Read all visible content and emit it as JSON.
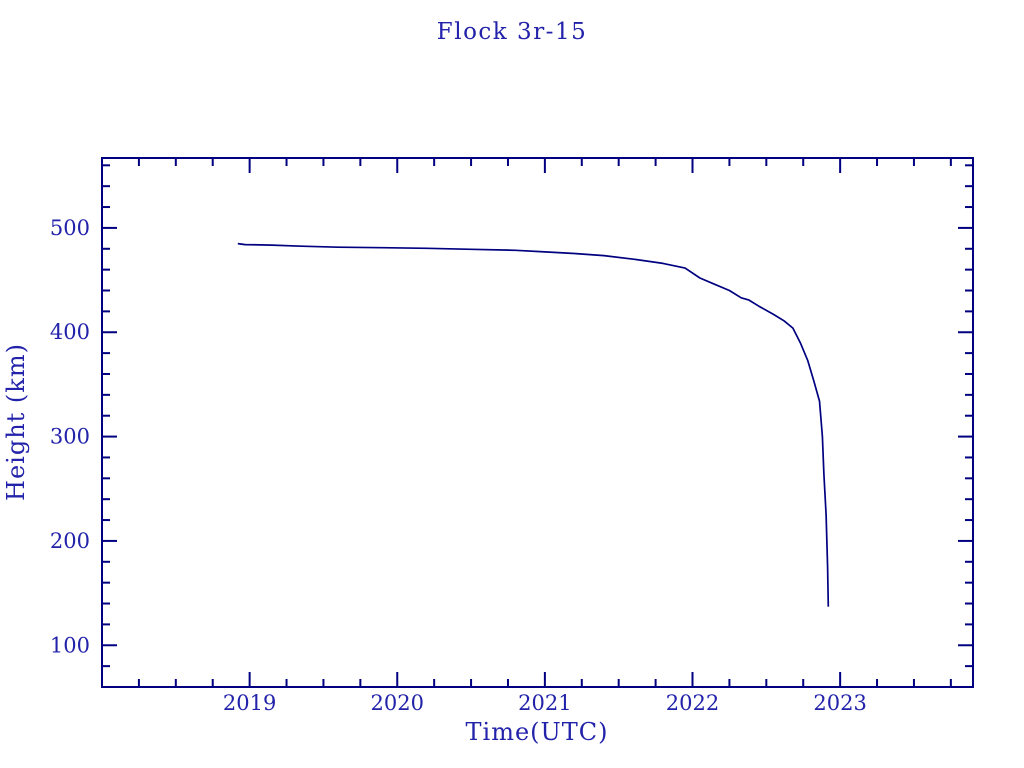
{
  "chart_data": {
    "type": "line",
    "title": "Flock 3r-15",
    "xlabel": "Time(UTC)",
    "ylabel": "Height (km)",
    "xlim": [
      2018.0,
      2023.9
    ],
    "ylim": [
      60,
      567
    ],
    "x_major_ticks": [
      2019,
      2020,
      2021,
      2022,
      2023
    ],
    "x_major_tick_labels": [
      "2019",
      "2020",
      "2021",
      "2022",
      "2023"
    ],
    "x_minor_interval": 0.25,
    "y_major_ticks": [
      100,
      200,
      300,
      400,
      500
    ],
    "y_major_tick_labels": [
      "100",
      "200",
      "300",
      "400",
      "500"
    ],
    "y_minor_interval": 20,
    "grid": false,
    "legend": "none",
    "line_color": "#000080",
    "axis_color": "#000080",
    "text_color": "#2222aa",
    "background_color": "#ffffff",
    "series": [
      {
        "name": "Flock 3r-15 orbital height",
        "points": [
          [
            2018.92,
            485.0
          ],
          [
            2018.97,
            484.0
          ],
          [
            2019.15,
            483.5
          ],
          [
            2019.35,
            482.5
          ],
          [
            2019.6,
            481.5
          ],
          [
            2019.9,
            481.0
          ],
          [
            2020.2,
            480.5
          ],
          [
            2020.5,
            479.5
          ],
          [
            2020.8,
            478.5
          ],
          [
            2021.0,
            477.0
          ],
          [
            2021.2,
            475.5
          ],
          [
            2021.4,
            473.5
          ],
          [
            2021.6,
            470.0
          ],
          [
            2021.8,
            466.0
          ],
          [
            2021.95,
            461.5
          ],
          [
            2022.05,
            452.0
          ],
          [
            2022.15,
            446.0
          ],
          [
            2022.25,
            440.0
          ],
          [
            2022.33,
            433.0
          ],
          [
            2022.38,
            431.0
          ],
          [
            2022.45,
            425.0
          ],
          [
            2022.55,
            417.0
          ],
          [
            2022.62,
            411.0
          ],
          [
            2022.68,
            404.0
          ],
          [
            2022.73,
            390.0
          ],
          [
            2022.78,
            373.0
          ],
          [
            2022.82,
            354.0
          ],
          [
            2022.86,
            334.0
          ],
          [
            2022.88,
            300.0
          ],
          [
            2022.89,
            264.0
          ],
          [
            2022.905,
            225.0
          ],
          [
            2022.915,
            175.0
          ],
          [
            2022.92,
            137.0
          ]
        ]
      }
    ]
  }
}
